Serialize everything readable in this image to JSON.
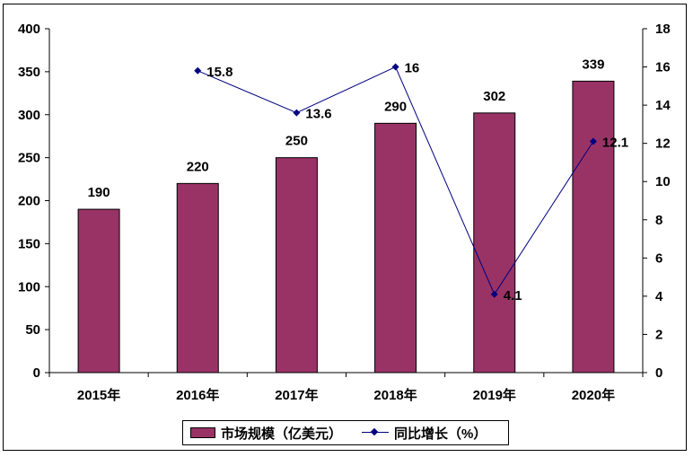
{
  "chart_data": {
    "type": "bar",
    "categories": [
      "2015年",
      "2016年",
      "2017年",
      "2018年",
      "2019年",
      "2020年"
    ],
    "series": [
      {
        "name": "市场规模（亿美元）",
        "type": "bar",
        "axis": "left",
        "color": "#993366",
        "values": [
          190,
          220,
          250,
          290,
          302,
          339
        ],
        "labels": [
          "190",
          "220",
          "250",
          "290",
          "302",
          "339"
        ]
      },
      {
        "name": "同比增长（%）",
        "type": "line",
        "axis": "right",
        "color": "#000080",
        "marker": "diamond",
        "values": [
          null,
          15.8,
          13.6,
          16,
          4.1,
          12.1
        ],
        "labels": [
          "",
          "15.8",
          "13.6",
          "16",
          "4.1",
          "12.1"
        ]
      }
    ],
    "y_left": {
      "ylim": [
        0,
        400
      ],
      "ticks": [
        0,
        50,
        100,
        150,
        200,
        250,
        300,
        350,
        400
      ]
    },
    "y_right": {
      "ylim": [
        0,
        18
      ],
      "ticks": [
        0,
        2,
        4,
        6,
        8,
        10,
        12,
        14,
        16,
        18
      ]
    },
    "title": "",
    "xlabel": "",
    "ylabel": "",
    "grid": false,
    "legend_position": "bottom"
  }
}
